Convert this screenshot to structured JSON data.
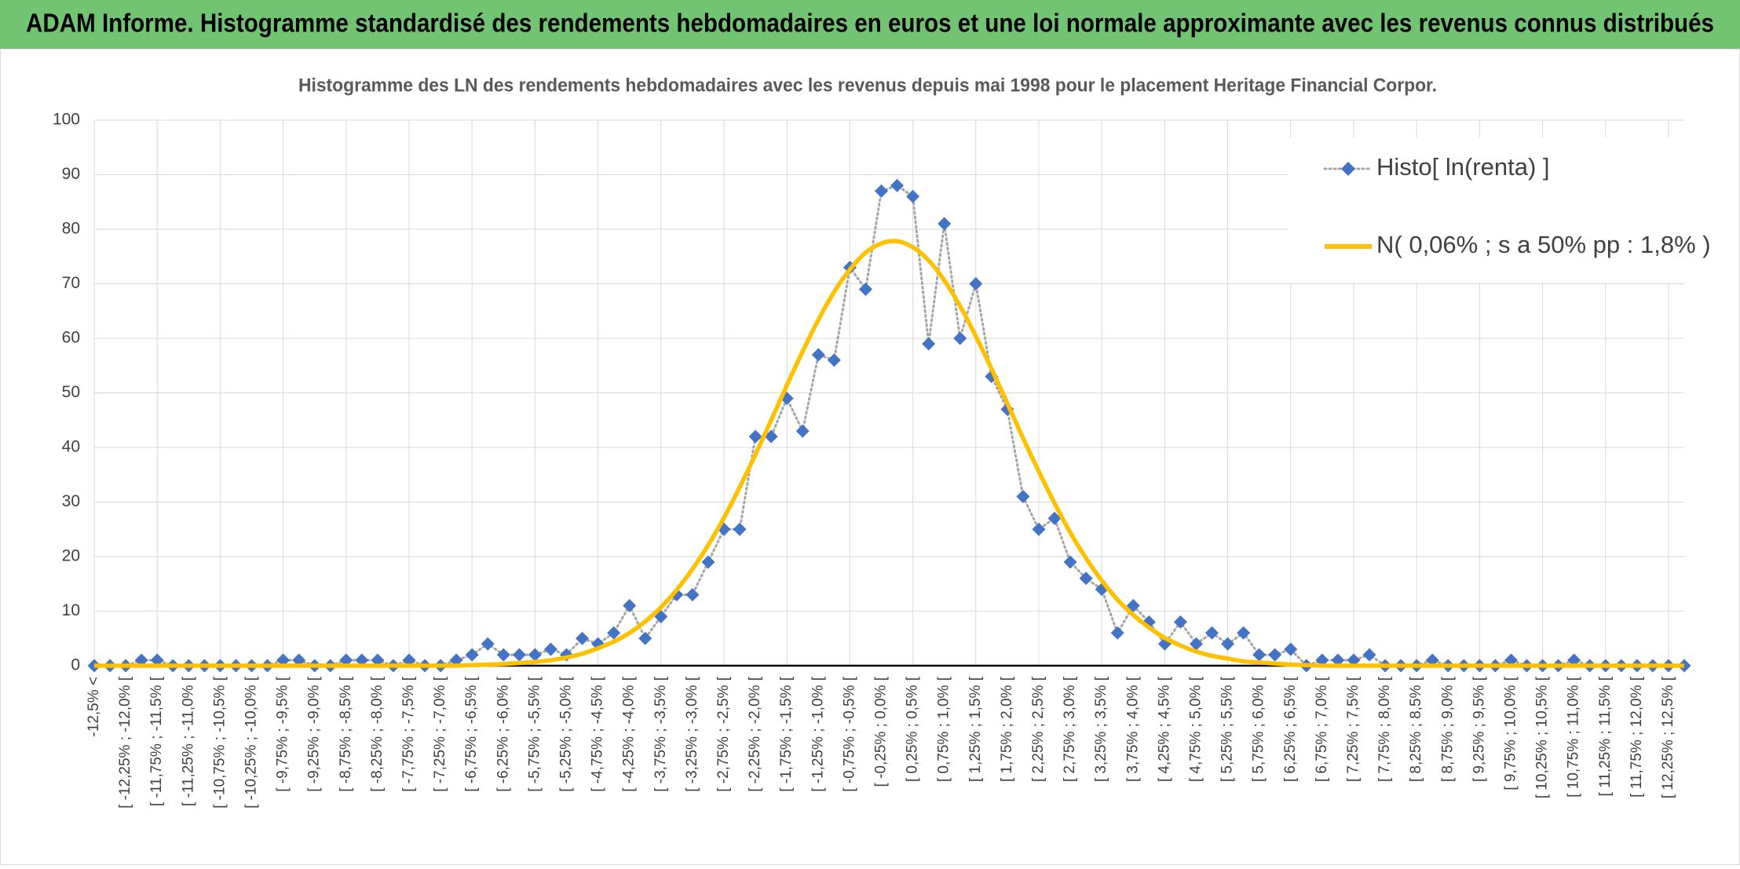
{
  "chart_data": {
    "type": "line",
    "title": "ADAM Informe. Histogramme standardisé des rendements hebdomadaires en euros et une loi normale approximante avec les revenus connus distribués",
    "subtitle": "Histogramme des LN des rendements hebdomadaires avec les revenus depuis mai 1998 pour le placement Heritage Financial Corpor.",
    "categories": [
      "-12,5% <",
      null,
      "[ -12,25% ; -12,0% [",
      null,
      "[ -11,75% ; -11,5% [",
      null,
      "[ -11,25% ; -11,0% [",
      null,
      "[ -10,75% ; -10,5% [",
      null,
      "[ -10,25% ; -10,0% [",
      null,
      "[ -9,75% ; -9,5% [",
      null,
      "[ -9,25% ; -9,0% [",
      null,
      "[ -8,75% ; -8,5% [",
      null,
      "[ -8,25% ; -8,0% [",
      null,
      "[ -7,75% ; -7,5% [",
      null,
      "[ -7,25% ; -7,0% [",
      null,
      "[ -6,75% ; -6,5% [",
      null,
      "[ -6,25% ; -6,0% [",
      null,
      "[ -5,75% ; -5,5% [",
      null,
      "[ -5,25% ; -5,0% [",
      null,
      "[ -4,75% ; -4,5% [",
      null,
      "[ -4,25% ; -4,0% [",
      null,
      "[ -3,75% ; -3,5% [",
      null,
      "[ -3,25% ; -3,0% [",
      null,
      "[ -2,75% ; -2,5% [",
      null,
      "[ -2,25% ; -2,0% [",
      null,
      "[ -1,75% ; -1,5% [",
      null,
      "[ -1,25% ; -1,0% [",
      null,
      "[ -0,75% ; -0,5% [",
      null,
      "[ -0,25% ; 0,0% [",
      null,
      "[ 0,25% ; 0,5% [",
      null,
      "[ 0,75% ; 1,0% [",
      null,
      "[ 1,25% ; 1,5% [",
      null,
      "[ 1,75% ; 2,0% [",
      null,
      "[ 2,25% ; 2,5% [",
      null,
      "[ 2,75% ; 3,0% [",
      null,
      "[ 3,25% ; 3,5% [",
      null,
      "[ 3,75% ; 4,0% [",
      null,
      "[ 4,25% ; 4,5% [",
      null,
      "[ 4,75% ; 5,0% [",
      null,
      "[ 5,25% ; 5,5% [",
      null,
      "[ 5,75% ; 6,0% [",
      null,
      "[ 6,25% ; 6,5% [",
      null,
      "[ 6,75% ; 7,0% [",
      null,
      "[ 7,25% ; 7,5% [",
      null,
      "[ 7,75% ; 8,0% [",
      null,
      "[ 8,25% ; 8,5% [",
      null,
      "[ 8,75% ; 9,0% [",
      null,
      "[ 9,25% ; 9,5% [",
      null,
      "[ 9,75% ; 10,0% [",
      null,
      "[ 10,25% ; 10,5% [",
      null,
      "[ 10,75% ; 11,0% [",
      null,
      "[ 11,25% ; 11,5% [",
      null,
      "[ 11,75% ; 12,0% [",
      null,
      "[ 12,25% ; 12,5% [",
      null
    ],
    "series": [
      {
        "name": "Histo[ ln(renta) ]",
        "color": "#4472c4",
        "line_color": "#a5a5a5",
        "marker": "diamond",
        "values": [
          0,
          0,
          0,
          1,
          1,
          0,
          0,
          0,
          0,
          0,
          0,
          0,
          1,
          1,
          0,
          0,
          1,
          1,
          1,
          0,
          1,
          0,
          0,
          1,
          2,
          4,
          2,
          2,
          2,
          3,
          2,
          5,
          4,
          6,
          11,
          5,
          9,
          13,
          13,
          19,
          25,
          25,
          42,
          42,
          49,
          43,
          57,
          56,
          73,
          69,
          87,
          88,
          86,
          59,
          81,
          60,
          70,
          53,
          47,
          31,
          25,
          27,
          19,
          16,
          14,
          6,
          11,
          8,
          4,
          8,
          4,
          6,
          4,
          6,
          2,
          2,
          3,
          0,
          1,
          1,
          1,
          2,
          0,
          0,
          0,
          1,
          0,
          0,
          0,
          0,
          1,
          0,
          0,
          0,
          1,
          0,
          0,
          0,
          0,
          0,
          0,
          0
        ]
      },
      {
        "name": "N( 0,06% ; s a 50% pp : 1,8% )",
        "color": "#ffc000",
        "values": [
          0,
          0,
          0,
          0,
          0,
          0,
          0,
          0,
          0,
          0,
          0,
          0,
          0,
          0,
          0,
          0,
          0,
          0,
          0,
          0,
          0,
          0,
          0,
          0,
          0.1,
          0.2,
          0.3,
          0.5,
          0.7,
          1,
          1.5,
          2.2,
          3.2,
          4.4,
          6,
          8.1,
          10.7,
          13.9,
          17.7,
          22.1,
          27.1,
          32.7,
          38.7,
          45,
          51.4,
          57.6,
          63.4,
          68.5,
          72.6,
          75.7,
          77.4,
          77.8,
          76.7,
          74.3,
          70.6,
          65.9,
          60.4,
          54.4,
          48.1,
          41.7,
          35.6,
          29.8,
          24.4,
          19.7,
          15.6,
          12.1,
          9.3,
          7,
          5.1,
          3.7,
          2.6,
          1.8,
          1.3,
          0.8,
          0.6,
          0.4,
          0.2,
          0.1,
          0,
          0,
          0,
          0,
          0,
          0,
          0,
          0,
          0,
          0,
          0,
          0,
          0,
          0,
          0,
          0,
          0,
          0,
          0,
          0,
          0,
          0,
          0,
          0
        ]
      }
    ],
    "ylim": [
      0,
      100
    ],
    "yticks": [
      0,
      10,
      20,
      30,
      40,
      50,
      60,
      70,
      80,
      90,
      100
    ],
    "grid": true,
    "legend": "top-right"
  }
}
